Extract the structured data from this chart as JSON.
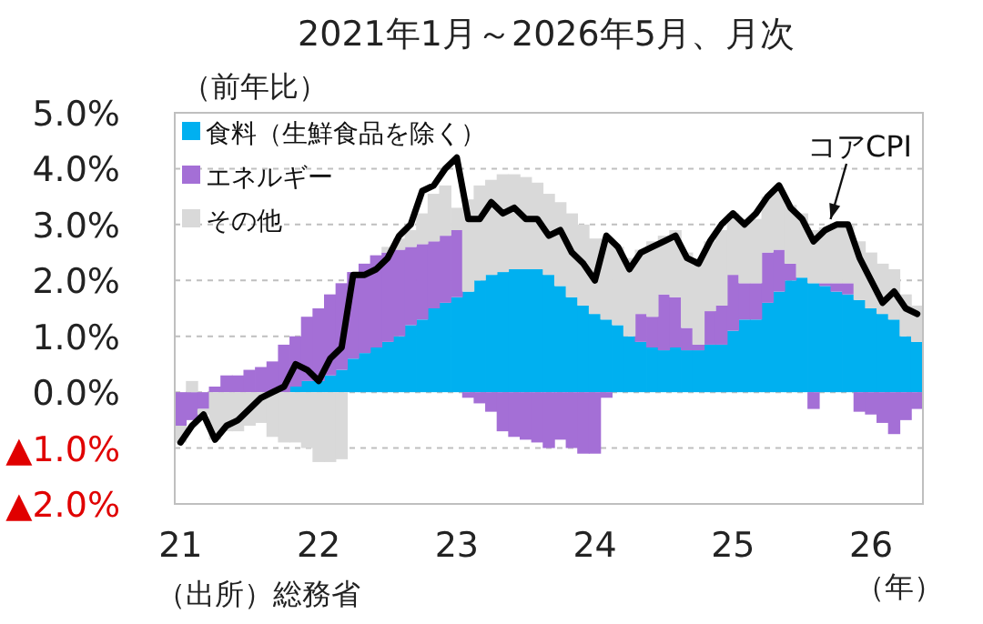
{
  "chart_data": {
    "type": "bar",
    "title": "2021年1月～2026年5月、月次",
    "ylabel": "（前年比）",
    "xlabel": "（年）",
    "annotations": [
      "（出所）総務省"
    ],
    "stacked": true,
    "grid": "y",
    "legend": "top left",
    "line_style": "solid",
    "ylim": [
      -2,
      5
    ],
    "yticks": [
      {
        "value": 5,
        "label": "5.0%"
      },
      {
        "value": 4,
        "label": "4.0%"
      },
      {
        "value": 3,
        "label": "3.0%"
      },
      {
        "value": 2,
        "label": "2.0%"
      },
      {
        "value": 1,
        "label": "1.0%"
      },
      {
        "value": 0,
        "label": "0.0%"
      },
      {
        "value": -1,
        "label": "▲1.0%"
      },
      {
        "value": -2,
        "label": "▲2.0%"
      }
    ],
    "categories": [
      "21",
      null,
      null,
      null,
      null,
      null,
      null,
      null,
      null,
      null,
      null,
      null,
      "22",
      null,
      null,
      null,
      null,
      null,
      null,
      null,
      null,
      null,
      null,
      null,
      "23",
      null,
      null,
      null,
      null,
      null,
      null,
      null,
      null,
      null,
      null,
      null,
      "24",
      null,
      null,
      null,
      null,
      null,
      null,
      null,
      null,
      null,
      null,
      null,
      "25",
      null,
      null,
      null,
      null,
      null,
      null,
      null,
      null,
      null,
      null,
      null,
      "26",
      null,
      null,
      null,
      null
    ],
    "series": [
      {
        "name": "食料（生鮮食品を除く）",
        "color": "#00b0f0",
        "values": [
          0.0,
          0.0,
          0.0,
          0.0,
          0.0,
          0.0,
          0.0,
          0.0,
          null,
          null,
          0.1,
          0.2,
          0.2,
          0.3,
          0.4,
          0.6,
          0.7,
          0.8,
          0.9,
          1.0,
          1.2,
          1.3,
          1.5,
          1.6,
          1.7,
          1.8,
          2.0,
          2.1,
          2.15,
          2.2,
          2.2,
          2.2,
          2.1,
          1.9,
          1.7,
          1.55,
          1.4,
          1.3,
          1.2,
          1.0,
          0.9,
          0.8,
          0.75,
          0.8,
          0.75,
          0.75,
          0.85,
          0.85,
          1.1,
          1.3,
          1.3,
          1.6,
          1.8,
          2.0,
          2.05,
          1.95,
          1.9,
          1.8,
          1.75,
          1.65,
          1.5,
          1.4,
          1.3,
          1.0,
          0.9
        ]
      },
      {
        "name": "エネルギー",
        "color": "#a46fd6",
        "values": [
          -0.6,
          -0.5,
          -0.3,
          0.1,
          0.3,
          0.3,
          0.4,
          0.45,
          0.55,
          0.85,
          0.9,
          1.15,
          1.3,
          1.45,
          1.55,
          1.55,
          1.6,
          1.65,
          1.6,
          1.55,
          1.4,
          1.35,
          1.2,
          1.2,
          1.2,
          -0.1,
          -0.2,
          -0.35,
          -0.7,
          -0.8,
          -0.85,
          -0.9,
          -1.0,
          -0.85,
          -1.0,
          -1.1,
          -1.1,
          -0.1,
          0.0,
          0.0,
          0.5,
          0.55,
          1.0,
          0.9,
          0.4,
          0.1,
          0.6,
          0.7,
          1.0,
          0.65,
          0.65,
          0.9,
          0.75,
          0.3,
          0.0,
          -0.3,
          0.05,
          0.15,
          0.2,
          -0.35,
          -0.4,
          -0.55,
          -0.75,
          -0.5,
          -0.3
        ]
      },
      {
        "name": "その他",
        "color": "#d9d9d9",
        "values": [
          -0.3,
          0.2,
          -0.1,
          -0.85,
          -0.7,
          -0.7,
          -0.6,
          -0.55,
          -0.8,
          -0.9,
          -0.9,
          -1.0,
          -1.25,
          -1.25,
          -1.2,
          0.0,
          0.0,
          0.0,
          0.1,
          0.2,
          0.3,
          0.55,
          0.85,
          0.9,
          0.4,
          1.65,
          1.7,
          1.7,
          1.75,
          1.7,
          1.65,
          1.55,
          1.45,
          1.5,
          1.5,
          1.45,
          1.35,
          1.45,
          1.4,
          1.4,
          1.15,
          1.35,
          1.05,
          1.2,
          1.35,
          1.55,
          1.25,
          1.35,
          1.1,
          1.15,
          1.15,
          1.0,
          1.05,
          1.05,
          1.15,
          0.95,
          1.0,
          1.05,
          1.05,
          1.05,
          1.0,
          0.9,
          0.9,
          0.75,
          0.65
        ]
      },
      {
        "name": "コアCPI",
        "type": "line",
        "color": "#000000",
        "values": [
          -0.9,
          -0.6,
          -0.4,
          -0.85,
          -0.6,
          -0.5,
          -0.3,
          -0.1,
          0.0,
          0.1,
          0.5,
          0.4,
          0.2,
          0.6,
          0.8,
          2.1,
          2.1,
          2.2,
          2.4,
          2.8,
          3.0,
          3.6,
          3.7,
          4.0,
          4.2,
          3.1,
          3.1,
          3.4,
          3.2,
          3.3,
          3.1,
          3.1,
          2.8,
          2.9,
          2.5,
          2.3,
          2.0,
          2.8,
          2.6,
          2.2,
          2.5,
          2.6,
          2.7,
          2.8,
          2.4,
          2.3,
          2.7,
          3.0,
          3.2,
          3.0,
          3.2,
          3.5,
          3.7,
          3.3,
          3.1,
          2.7,
          2.9,
          3.0,
          3.0,
          2.4,
          2.0,
          1.6,
          1.8,
          1.5,
          1.4
        ]
      }
    ]
  }
}
